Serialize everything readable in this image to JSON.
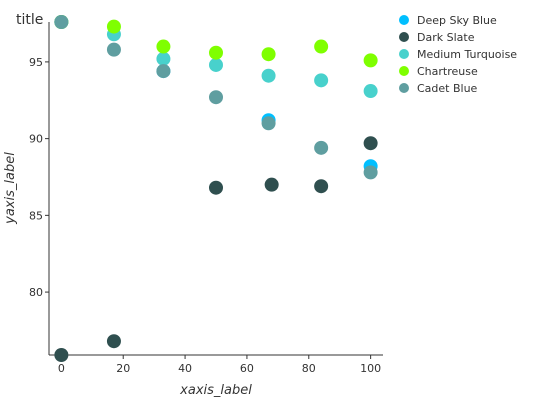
{
  "chart_data": {
    "type": "scatter",
    "title": "title",
    "xlabel": "xaxis_label",
    "ylabel": "yaxis_label",
    "xlim": [
      -4,
      104
    ],
    "ylim": [
      75.9,
      97.6
    ],
    "xticks": [
      0,
      20,
      40,
      60,
      80,
      100
    ],
    "yticks": [
      80,
      85,
      90,
      95
    ],
    "grid": false,
    "legend_position": "right",
    "series": [
      {
        "name": "Deep Sky Blue",
        "color": "#00BFFF",
        "points": [
          [
            0,
            97.6
          ],
          [
            33,
            94.4
          ],
          [
            67,
            91.2
          ],
          [
            100,
            88.2
          ]
        ]
      },
      {
        "name": "Dark Slate",
        "color": "#2F4F4F",
        "points": [
          [
            0,
            75.9
          ],
          [
            17,
            76.8
          ],
          [
            50,
            86.8
          ],
          [
            68,
            87.0
          ],
          [
            84,
            86.9
          ],
          [
            100,
            89.7
          ]
        ]
      },
      {
        "name": "Medium Turquoise",
        "color": "#48D1CC",
        "points": [
          [
            0,
            97.6
          ],
          [
            17,
            96.8
          ],
          [
            33,
            95.2
          ],
          [
            50,
            94.8
          ],
          [
            67,
            94.1
          ],
          [
            84,
            93.8
          ],
          [
            100,
            93.1
          ]
        ]
      },
      {
        "name": "Chartreuse",
        "color": "#7FFF00",
        "points": [
          [
            0,
            97.6
          ],
          [
            17,
            97.3
          ],
          [
            33,
            96.0
          ],
          [
            50,
            95.6
          ],
          [
            67,
            95.5
          ],
          [
            84,
            96.0
          ],
          [
            100,
            95.1
          ]
        ]
      },
      {
        "name": "Cadet Blue",
        "color": "#5F9EA0",
        "points": [
          [
            0,
            97.6
          ],
          [
            17,
            95.8
          ],
          [
            33,
            94.4
          ],
          [
            50,
            92.7
          ],
          [
            67,
            91.0
          ],
          [
            84,
            89.4
          ],
          [
            100,
            87.8
          ]
        ]
      }
    ]
  }
}
